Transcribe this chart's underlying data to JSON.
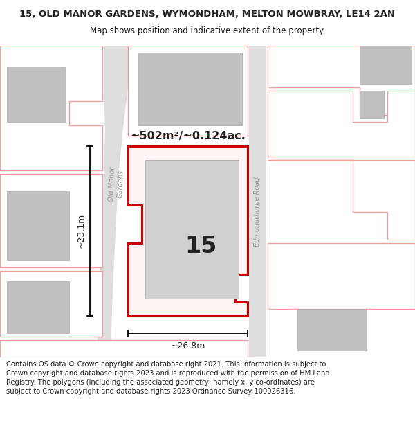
{
  "title": "15, OLD MANOR GARDENS, WYMONDHAM, MELTON MOWBRAY, LE14 2AN",
  "subtitle": "Map shows position and indicative extent of the property.",
  "footer": "Contains OS data © Crown copyright and database right 2021. This information is subject to Crown copyright and database rights 2023 and is reproduced with the permission of HM Land Registry. The polygons (including the associated geometry, namely x, y co-ordinates) are subject to Crown copyright and database rights 2023 Ordnance Survey 100026316.",
  "bg_color": "#ffffff",
  "map_bg": "#f0f0f0",
  "title_fontsize": 9.5,
  "subtitle_fontsize": 8.5,
  "footer_fontsize": 7.2,
  "area_text": "~502m²/~0.124ac.",
  "label_15": "15",
  "dim_width": "~26.8m",
  "dim_height": "~23.1m",
  "street_label_left": "Old Manor\nGardens",
  "street_label_right": "Edmondthorpe Road",
  "red_color": "#cc0000",
  "light_red": "#f0a0a0",
  "gray_road": "#dddddd",
  "gray_building": "#c0c0c0",
  "gray_text": "#999999",
  "dark_text": "#222222",
  "white": "#ffffff"
}
